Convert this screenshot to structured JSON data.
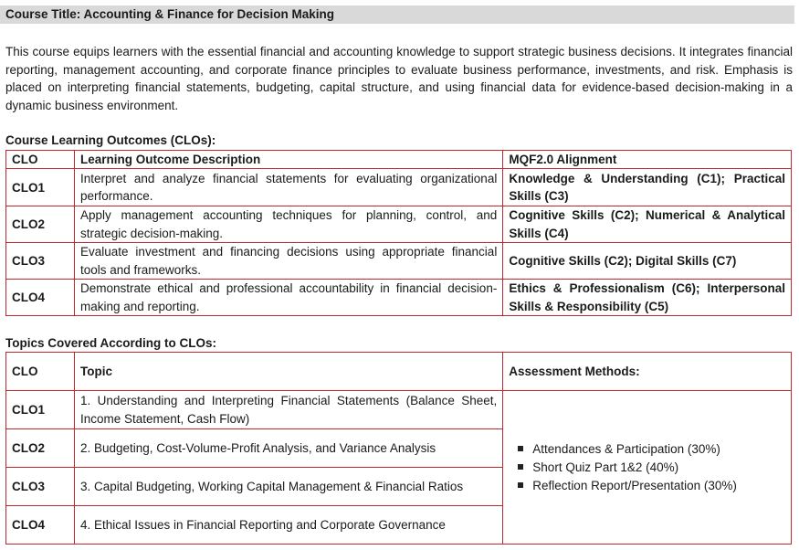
{
  "course_title": "Course Title: Accounting & Finance for Decision Making",
  "intro": "This course equips learners with the essential financial and accounting knowledge to support strategic business decisions. It integrates financial reporting, management accounting, and corporate finance principles to evaluate business performance, investments, and risk. Emphasis is placed on interpreting financial statements, budgeting, capital structure, and using financial data for evidence-based decision-making in a dynamic business environment.",
  "clo_section": {
    "heading": "Course Learning Outcomes (CLOs):",
    "headers": [
      "CLO",
      "Learning Outcome Description",
      "MQF2.0 Alignment"
    ],
    "rows": [
      {
        "clo": "CLO1",
        "desc": "Interpret and analyze financial statements for evaluating organizational performance.",
        "align": "Knowledge & Understanding (C1); Practical Skills (C3)"
      },
      {
        "clo": "CLO2",
        "desc": "Apply management accounting techniques for planning, control, and strategic decision-making.",
        "align": "Cognitive Skills (C2); Numerical & Analytical Skills (C4)"
      },
      {
        "clo": "CLO3",
        "desc": "Evaluate investment and financing decisions using appropriate financial tools and frameworks.",
        "align": "Cognitive Skills (C2); Digital Skills (C7)"
      },
      {
        "clo": "CLO4",
        "desc": "Demonstrate ethical and professional accountability in financial decision-making and reporting.",
        "align": "Ethics & Professionalism (C6); Interpersonal Skills & Responsibility (C5)"
      }
    ]
  },
  "topics_section": {
    "heading": "Topics Covered According to CLOs:",
    "headers": [
      "CLO",
      "Topic",
      "Assessment Methods:"
    ],
    "rows": [
      {
        "clo": "CLO1",
        "topic": "1. Understanding and Interpreting Financial Statements (Balance Sheet, Income Statement, Cash Flow)"
      },
      {
        "clo": "CLO2",
        "topic": "2. Budgeting, Cost-Volume-Profit Analysis, and Variance Analysis"
      },
      {
        "clo": "CLO3",
        "topic": "3. Capital Budgeting, Working Capital Management & Financial Ratios"
      },
      {
        "clo": "CLO4",
        "topic": "4. Ethical Issues in Financial Reporting and Corporate Governance"
      }
    ],
    "assessments": [
      "Attendances & Participation (30%)",
      "Short Quiz Part 1&2 (40%)",
      "Reflection Report/Presentation (30%)"
    ]
  }
}
